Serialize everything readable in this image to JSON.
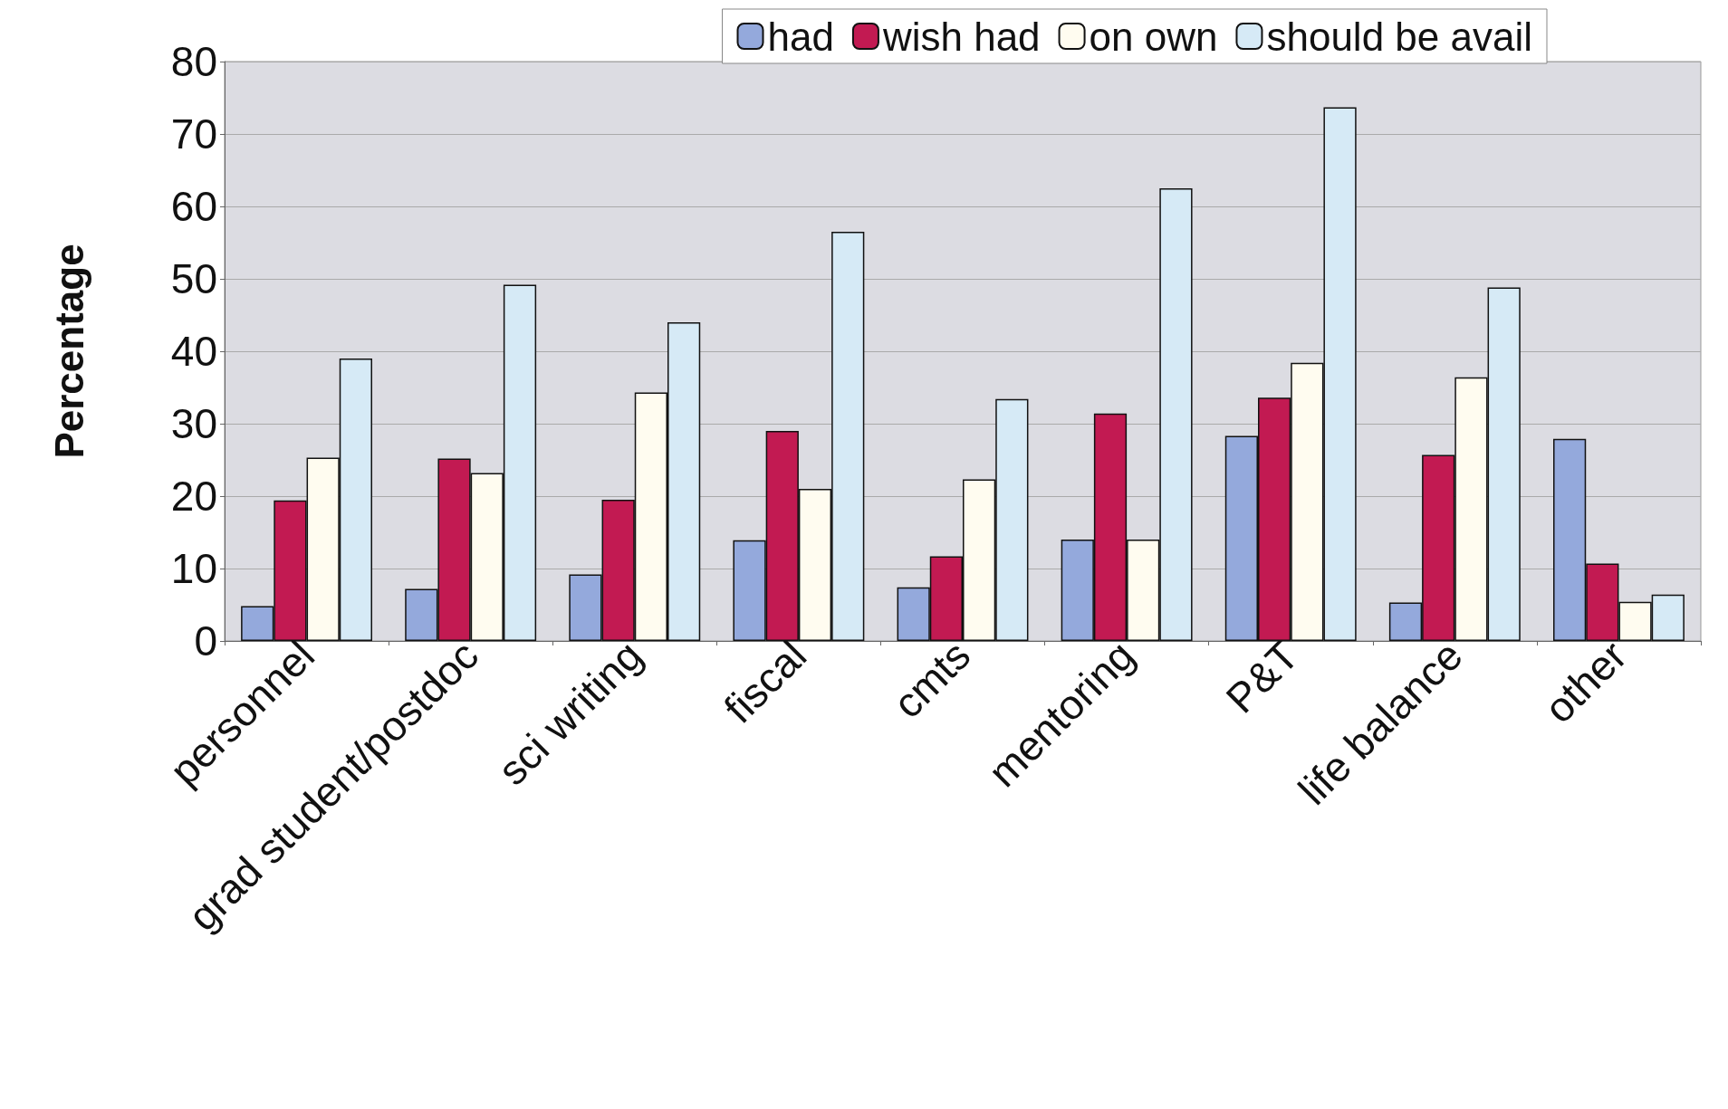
{
  "chart_data": {
    "type": "bar",
    "ylabel": "Percentage",
    "categories": [
      "personnel",
      "grad student/postdoc",
      "sci writing",
      "fiscal",
      "cmts",
      "mentoring",
      "P&T",
      "life balance",
      "other"
    ],
    "series": [
      {
        "name": "had",
        "color": "#94a9dc",
        "values": [
          4.8,
          7.2,
          9.2,
          13.9,
          7.4,
          14,
          28.3,
          5.3,
          27.9
        ]
      },
      {
        "name": "wish had",
        "color": "#c21a52",
        "values": [
          19.4,
          25.2,
          19.5,
          29,
          11.7,
          31.4,
          33.6,
          25.7,
          10.7
        ]
      },
      {
        "name": "on own",
        "color": "#fffcf0",
        "values": [
          25.3,
          23.2,
          34.3,
          21,
          22.3,
          14,
          38.4,
          36.4,
          5.4
        ]
      },
      {
        "name": "should be avail",
        "color": "#d6eaf6",
        "values": [
          39,
          49.2,
          44,
          56.5,
          33.4,
          62.5,
          73.7,
          48.8,
          6.4
        ]
      }
    ],
    "ylim": [
      0,
      80
    ],
    "yticks": [
      0,
      10,
      20,
      30,
      40,
      50,
      60,
      70,
      80
    ],
    "grid": "y",
    "legend": "top right"
  }
}
